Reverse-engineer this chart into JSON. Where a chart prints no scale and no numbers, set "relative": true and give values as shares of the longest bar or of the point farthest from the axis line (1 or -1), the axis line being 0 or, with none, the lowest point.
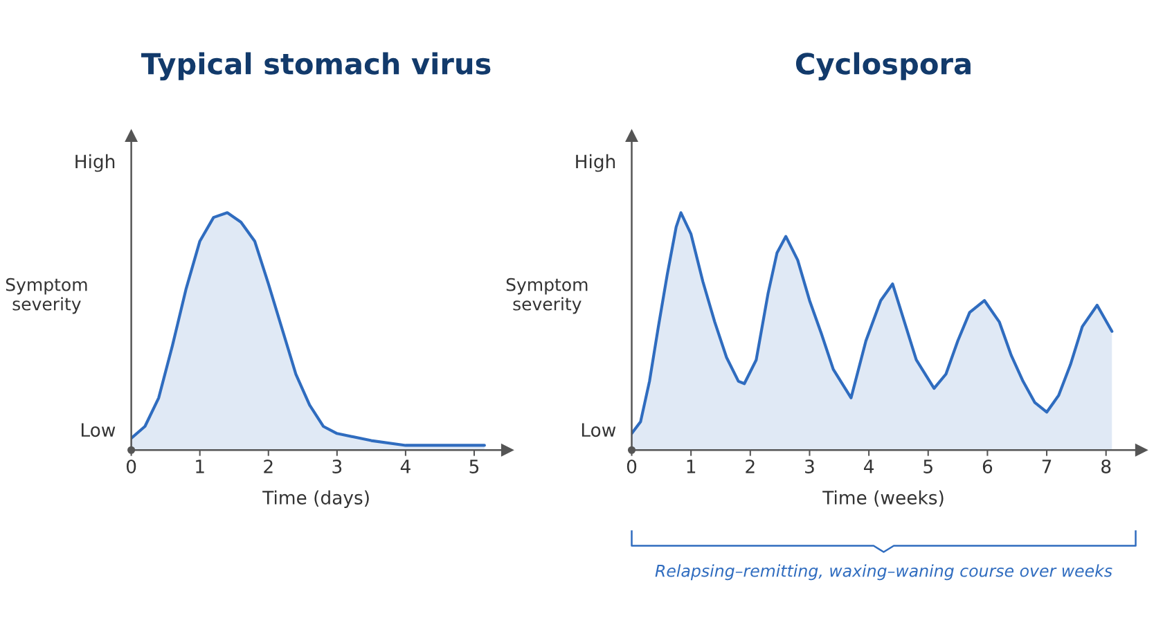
{
  "chart_data": [
    {
      "type": "area",
      "title": "Typical stomach virus",
      "xlabel": "Time (days)",
      "ylabel": "Symptom\nseverity",
      "color": "#2f6cbf",
      "relative": true,
      "x": [
        0,
        0.2,
        0.4,
        0.6,
        0.8,
        1.0,
        1.2,
        1.4,
        1.6,
        1.8,
        2.0,
        2.2,
        2.4,
        2.6,
        2.8,
        3.0,
        3.5,
        4.0,
        4.5,
        5.15
      ],
      "values": [
        0.05,
        0.1,
        0.22,
        0.44,
        0.68,
        0.88,
        0.98,
        1,
        0.96,
        0.88,
        0.7,
        0.51,
        0.32,
        0.19,
        0.1,
        0.07,
        0.04,
        0.02,
        0.02,
        0.02
      ],
      "xlim": [
        0,
        5.4
      ],
      "xticks": [
        0,
        1,
        2,
        3,
        4,
        5
      ],
      "annotations": [
        "High",
        "Low"
      ]
    },
    {
      "type": "area",
      "title": "Cyclospora",
      "xlabel": "Time (weeks)",
      "ylabel": "Symptom\nseverity",
      "color": "#2f6cbf",
      "relative": true,
      "x": [
        0,
        0.15,
        0.3,
        0.45,
        0.6,
        0.75,
        0.83,
        1.0,
        1.2,
        1.4,
        1.6,
        1.8,
        1.9,
        2.1,
        2.3,
        2.45,
        2.6,
        2.8,
        3.0,
        3.2,
        3.4,
        3.7,
        3.95,
        4.2,
        4.4,
        4.6,
        4.8,
        5.1,
        5.3,
        5.5,
        5.7,
        5.95,
        6.2,
        6.4,
        6.6,
        6.8,
        7.0,
        7.2,
        7.4,
        7.6,
        7.85,
        8.1
      ],
      "values": [
        0.07,
        0.12,
        0.29,
        0.52,
        0.74,
        0.94,
        1,
        0.91,
        0.71,
        0.54,
        0.39,
        0.29,
        0.28,
        0.38,
        0.66,
        0.83,
        0.9,
        0.8,
        0.63,
        0.49,
        0.34,
        0.22,
        0.46,
        0.63,
        0.7,
        0.54,
        0.38,
        0.26,
        0.32,
        0.46,
        0.58,
        0.63,
        0.54,
        0.4,
        0.29,
        0.2,
        0.16,
        0.23,
        0.36,
        0.52,
        0.61,
        0.5
      ],
      "xlim": [
        0,
        8.5
      ],
      "xticks": [
        0,
        1,
        2,
        3,
        4,
        5,
        6,
        7,
        8
      ],
      "annotations": [
        "High",
        "Low",
        "Relapsing–remitting, waxing–waning course over weeks"
      ]
    }
  ]
}
